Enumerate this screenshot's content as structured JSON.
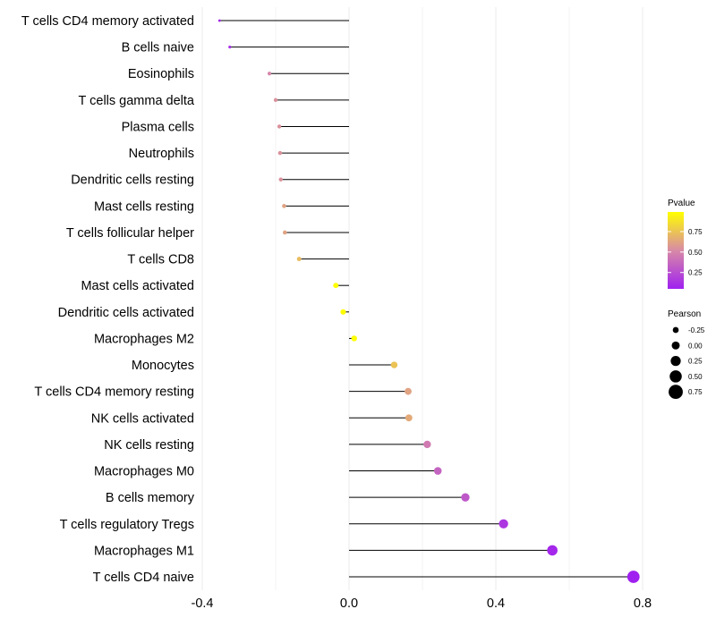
{
  "chart_data": {
    "type": "lollipop",
    "title": "",
    "xlabel": "",
    "ylabel": "",
    "xlim": [
      -0.4,
      0.8
    ],
    "xticks": [
      -0.4,
      0.0,
      0.4,
      0.8
    ],
    "xtick_labels": [
      "-0.4",
      "0.0",
      "0.4",
      "0.8"
    ],
    "categories": [
      "T cells CD4 memory activated",
      "B cells naive",
      "Eosinophils",
      "T cells gamma delta",
      "Plasma cells",
      "Neutrophils",
      "Dendritic cells resting",
      "Mast cells resting",
      "T cells follicular helper",
      "T cells CD8",
      "Mast cells activated",
      "Dendritic cells activated",
      "Macrophages M2",
      "Monocytes",
      "T cells CD4 memory resting",
      "NK cells activated",
      "NK cells resting",
      "Macrophages M0",
      "B cells memory",
      "T cells regulatory  Tregs",
      "Macrophages M1",
      "T cells CD4 naive"
    ],
    "pearson": [
      -0.353,
      -0.325,
      -0.217,
      -0.2,
      -0.19,
      -0.188,
      -0.186,
      -0.177,
      -0.175,
      -0.136,
      -0.036,
      -0.016,
      0.014,
      0.123,
      0.161,
      0.163,
      0.213,
      0.242,
      0.317,
      0.421,
      0.554,
      0.775
    ],
    "pvalue": [
      0.08,
      0.1,
      0.5,
      0.55,
      0.55,
      0.55,
      0.55,
      0.62,
      0.62,
      0.72,
      0.99,
      0.99,
      0.99,
      0.75,
      0.62,
      0.65,
      0.45,
      0.35,
      0.3,
      0.15,
      0.08,
      0.05
    ],
    "legend_pvalue": {
      "title": "Pvalue",
      "ticks": [
        0.25,
        0.5,
        0.75
      ],
      "tick_labels": [
        "0.25",
        "0.50",
        "0.75"
      ],
      "range": [
        0.05,
        0.99
      ],
      "color_low": "#a020f0",
      "color_mid": "#d88aa6",
      "color_high": "#ffff00"
    },
    "legend_pearson": {
      "title": "Pearson",
      "values": [
        -0.25,
        0.0,
        0.25,
        0.5,
        0.75
      ],
      "labels": [
        "-0.25",
        "0.00",
        "0.25",
        "0.50",
        "0.75"
      ]
    },
    "legend_position": "right",
    "grid": true
  }
}
